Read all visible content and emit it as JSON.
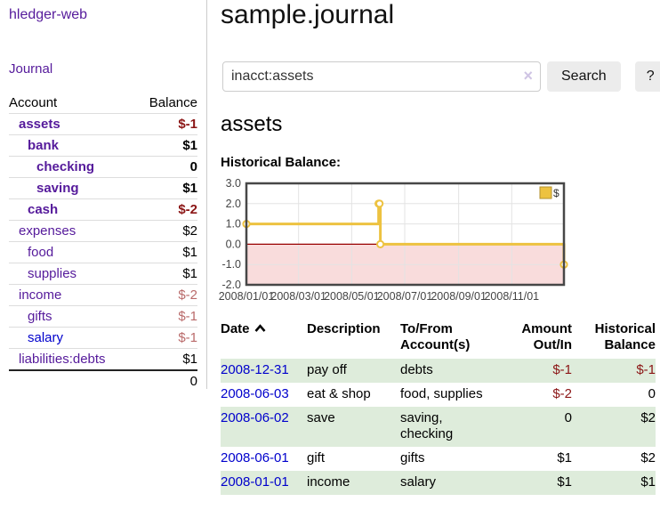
{
  "app": {
    "title": "hledger-web"
  },
  "sidebar": {
    "journal_link": "Journal",
    "accounts_table": {
      "headers": [
        "Account",
        "Balance"
      ],
      "rows": [
        {
          "name": "assets",
          "depth": 1,
          "bold": true,
          "balance": "$-1",
          "balance_style": "neg-strong",
          "link_color": "purple"
        },
        {
          "name": "bank",
          "depth": 2,
          "bold": true,
          "balance": "$1",
          "balance_style": "",
          "link_color": "purple"
        },
        {
          "name": "checking",
          "depth": 3,
          "bold": true,
          "balance": "0",
          "balance_style": "",
          "link_color": "purple"
        },
        {
          "name": "saving",
          "depth": 3,
          "bold": true,
          "balance": "$1",
          "balance_style": "",
          "link_color": "purple"
        },
        {
          "name": "cash",
          "depth": 2,
          "bold": true,
          "balance": "$-2",
          "balance_style": "neg-strong",
          "link_color": "purple"
        },
        {
          "name": "expenses",
          "depth": 1,
          "bold": false,
          "balance": "$2",
          "balance_style": "",
          "link_color": "purple"
        },
        {
          "name": "food",
          "depth": 2,
          "bold": false,
          "balance": "$1",
          "balance_style": "",
          "link_color": "purple"
        },
        {
          "name": "supplies",
          "depth": 2,
          "bold": false,
          "balance": "$1",
          "balance_style": "",
          "link_color": "purple"
        },
        {
          "name": "income",
          "depth": 1,
          "bold": false,
          "balance": "$-2",
          "balance_style": "neg-soft",
          "link_color": "purple"
        },
        {
          "name": "gifts",
          "depth": 2,
          "bold": false,
          "balance": "$-1",
          "balance_style": "neg-soft",
          "link_color": "purple"
        },
        {
          "name": "salary",
          "depth": 2,
          "bold": false,
          "balance": "$-1",
          "balance_style": "neg-soft",
          "link_color": "blue"
        },
        {
          "name": "liabilities:debts",
          "depth": 1,
          "bold": false,
          "balance": "$1",
          "balance_style": "",
          "link_color": "purple"
        }
      ],
      "total": "0"
    }
  },
  "header": {
    "title": "sample.journal"
  },
  "search": {
    "value": "inacct:assets",
    "clear_icon": "×",
    "button_label": "Search",
    "help_label": "?"
  },
  "account_page": {
    "heading": "assets",
    "chart_title": "Historical Balance:"
  },
  "chart_data": {
    "type": "line",
    "step": true,
    "title": "Historical Balance:",
    "series": [
      {
        "name": "$",
        "color": "#edc240",
        "points": [
          {
            "date": "2008-01-01",
            "value": 1
          },
          {
            "date": "2008-06-01",
            "value": 2
          },
          {
            "date": "2008-06-02",
            "value": 2
          },
          {
            "date": "2008-06-03",
            "value": 0
          },
          {
            "date": "2008-12-31",
            "value": -1
          }
        ]
      }
    ],
    "x_ticks": [
      {
        "date": "2008-01-01",
        "label": "2008/01/01"
      },
      {
        "date": "2008-03-01",
        "label": "2008/03/01"
      },
      {
        "date": "2008-05-01",
        "label": "2008/05/01"
      },
      {
        "date": "2008-07-01",
        "label": "2008/07/01"
      },
      {
        "date": "2008-09-01",
        "label": "2008/09/01"
      },
      {
        "date": "2008-11-01",
        "label": "2008/11/01"
      }
    ],
    "y_ticks": [
      "3.0",
      "2.0",
      "1.0",
      "0.0",
      "-1.0",
      "-2.0"
    ],
    "ylim": [
      -2,
      3
    ],
    "xlim": [
      "2008-01-01",
      "2008-12-31"
    ],
    "grid": true,
    "negative_region_color": "#f9dcdc",
    "zero_line_color": "#990000",
    "grid_color": "#e3e3e3",
    "border_color": "#474747",
    "legend": {
      "label": "$",
      "position": "top-right"
    }
  },
  "register_table": {
    "headers": [
      "Date",
      "Description",
      "To/From\nAccount(s)",
      "Amount\nOut/In",
      "Historical\nBalance"
    ],
    "rows": [
      {
        "date": "2008-12-31",
        "description": "pay off",
        "accounts": "debts",
        "amount": "$-1",
        "amount_negative": true,
        "balance": "$-1",
        "balance_negative": true
      },
      {
        "date": "2008-06-03",
        "description": "eat & shop",
        "accounts": "food, supplies",
        "amount": "$-2",
        "amount_negative": true,
        "balance": "0",
        "balance_negative": false
      },
      {
        "date": "2008-06-02",
        "description": "save",
        "accounts": "saving,\nchecking",
        "amount": "0",
        "amount_negative": false,
        "balance": "$2",
        "balance_negative": false
      },
      {
        "date": "2008-06-01",
        "description": "gift",
        "accounts": "gifts",
        "amount": "$1",
        "amount_negative": false,
        "balance": "$2",
        "balance_negative": false
      },
      {
        "date": "2008-01-01",
        "description": "income",
        "accounts": "salary",
        "amount": "$1",
        "amount_negative": false,
        "balance": "$1",
        "balance_negative": false
      }
    ]
  }
}
